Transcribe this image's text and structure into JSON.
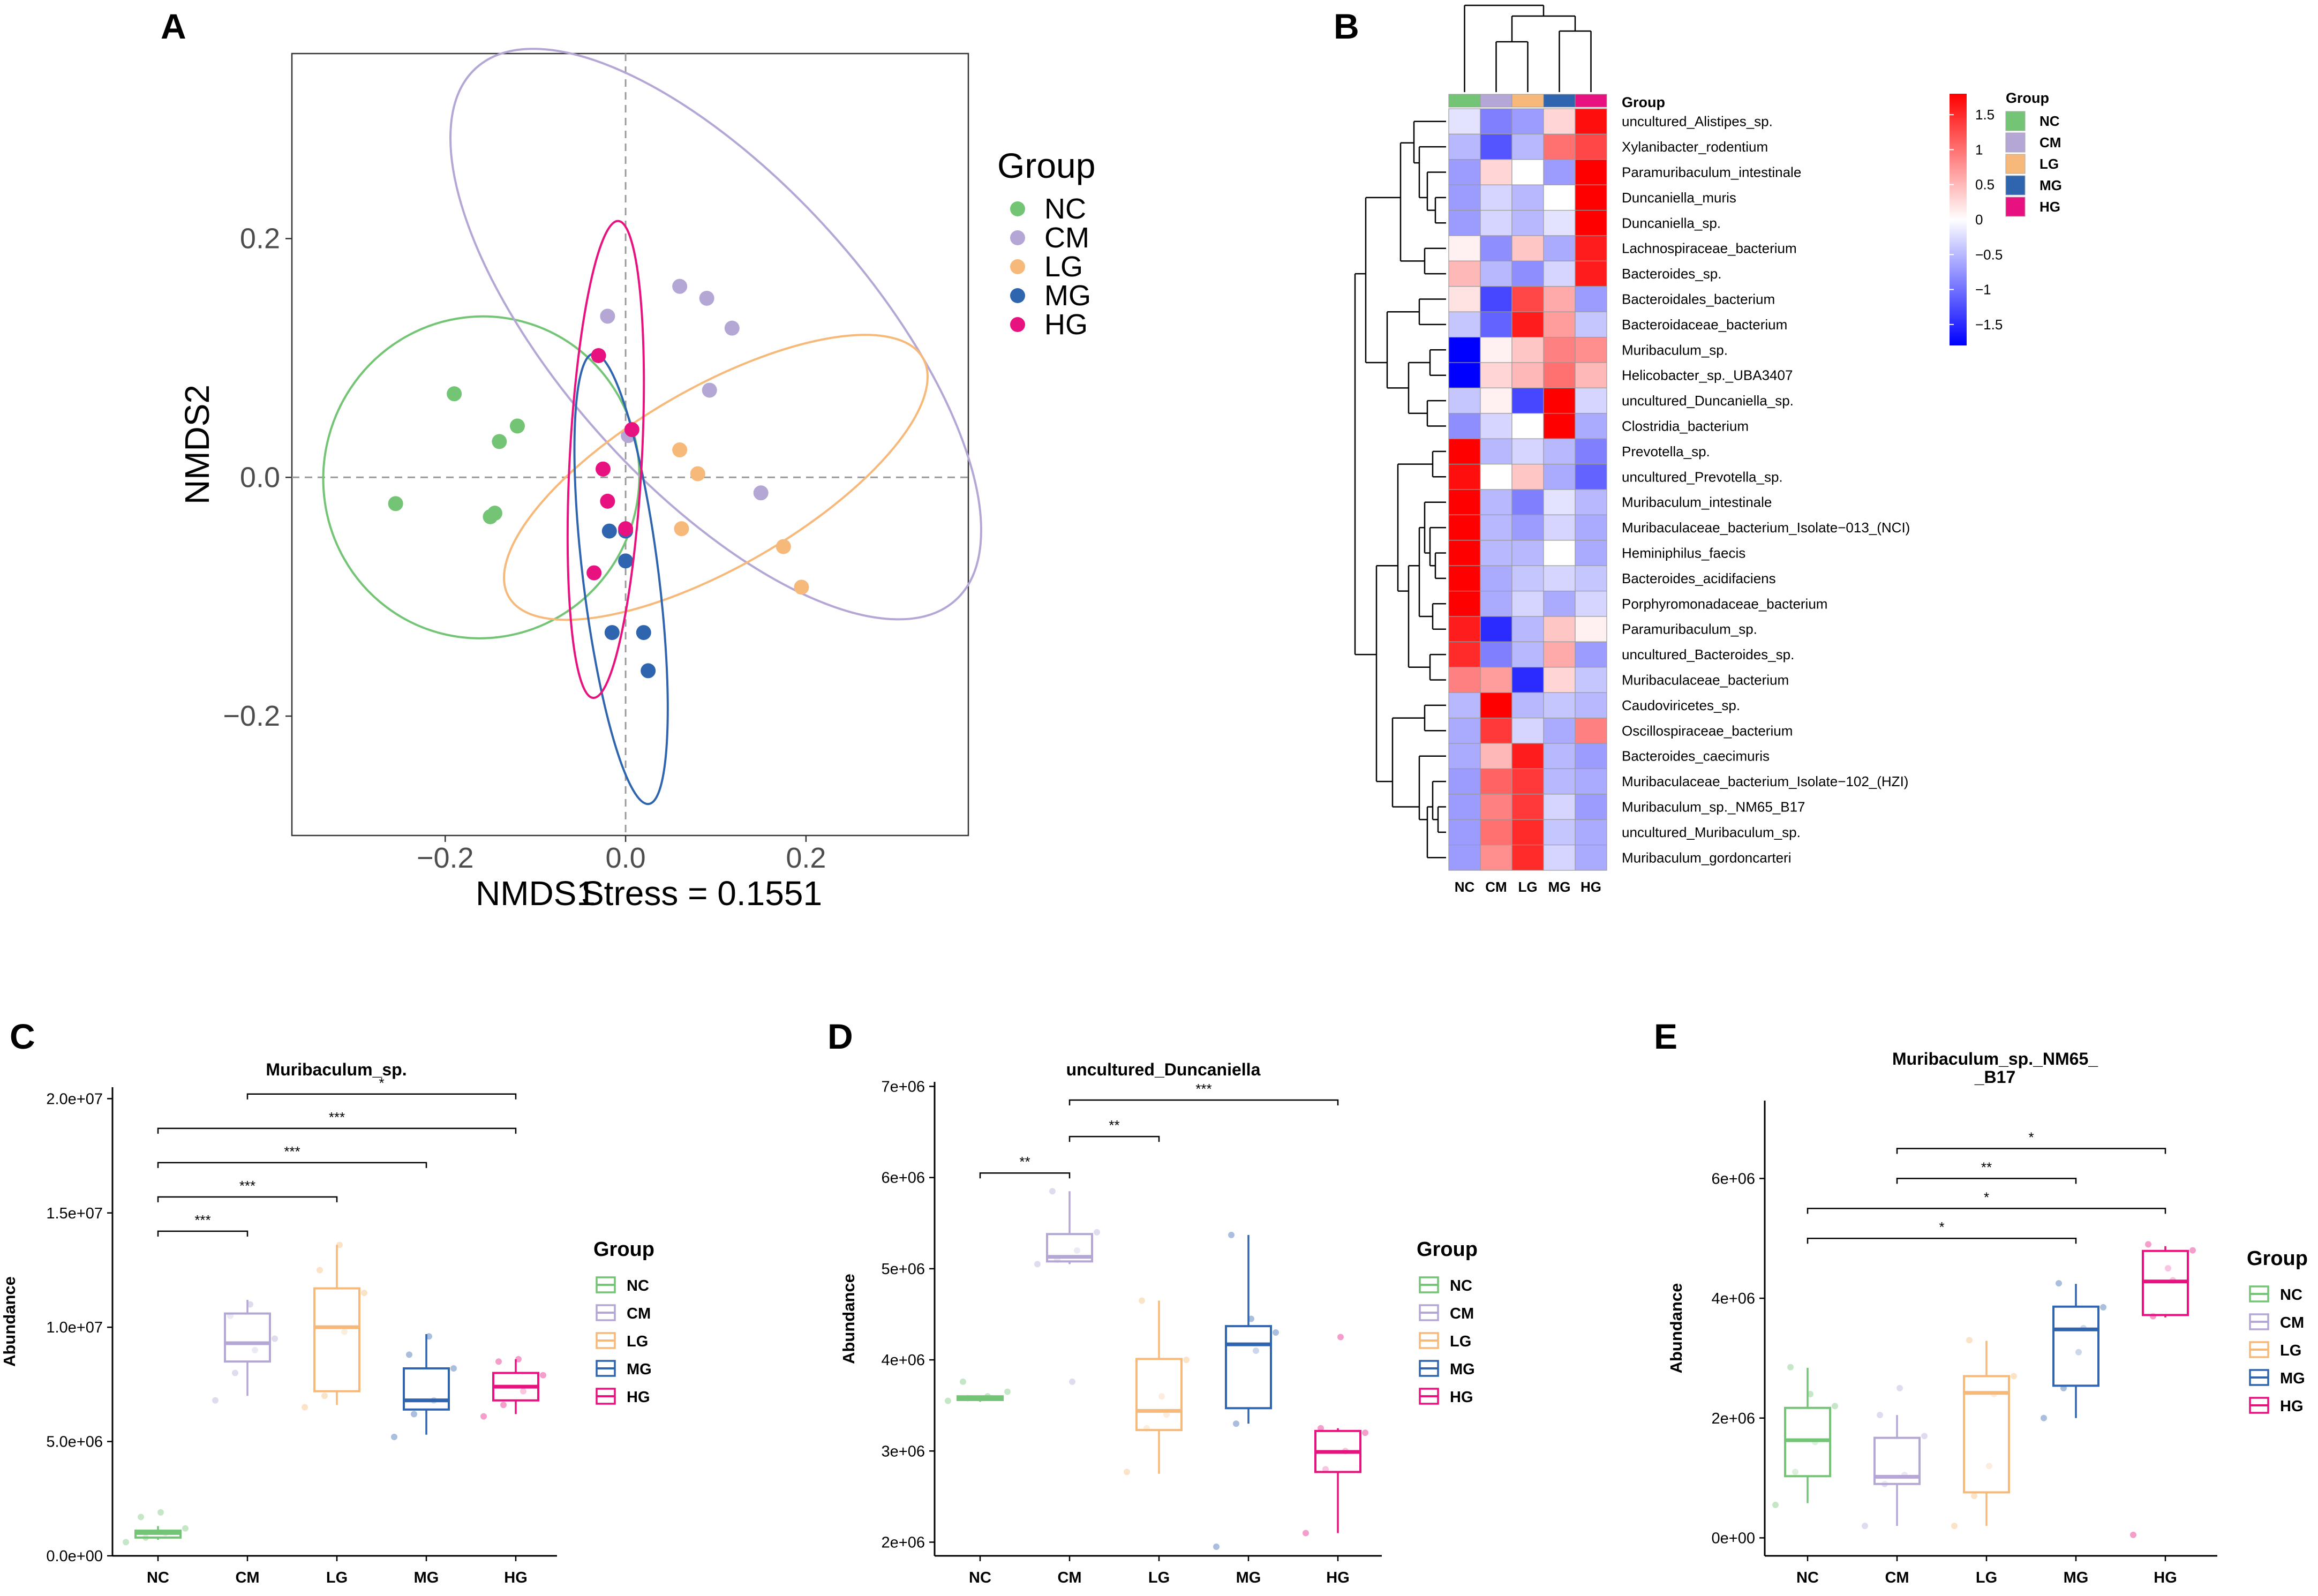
{
  "colors": {
    "NC": "#74c476",
    "CM": "#b4a7d6",
    "LG": "#f6b97a",
    "MG": "#2f64ae",
    "HG": "#e7127f",
    "heat_high": "#ff0000",
    "heat_mid": "#ffffff",
    "heat_low": "#0000ff"
  },
  "groups": [
    "NC",
    "CM",
    "LG",
    "MG",
    "HG"
  ],
  "chart_data": [
    {
      "panel": "A",
      "type": "scatter",
      "xlabel": "NMDS1",
      "stress_label": "Stress = 0.1551",
      "ylabel": "NMDS2",
      "xlim": [
        -0.37,
        0.38
      ],
      "ylim": [
        -0.3,
        0.355
      ],
      "xticks": [
        -0.2,
        0.0,
        0.2
      ],
      "yticks": [
        -0.2,
        0.0,
        0.2
      ],
      "xtick_labels": [
        "−0.2",
        "0.0",
        "0.2"
      ],
      "ytick_labels": [
        "−0.2",
        "0.0",
        "0.2"
      ],
      "legend_title": "Group",
      "legend_position": "right",
      "series": [
        {
          "name": "NC",
          "points": [
            [
              -0.19,
              0.07
            ],
            [
              -0.14,
              0.03
            ],
            [
              -0.12,
              0.043
            ],
            [
              -0.15,
              -0.033
            ],
            [
              -0.145,
              -0.03
            ],
            [
              -0.255,
              -0.022
            ]
          ],
          "ellipse": {
            "center": [
              -0.16,
              0.0
            ],
            "rx": 0.175,
            "ry": 0.135,
            "angle_deg": 15
          }
        },
        {
          "name": "CM",
          "points": [
            [
              -0.02,
              0.135
            ],
            [
              0.06,
              0.16
            ],
            [
              0.09,
              0.15
            ],
            [
              0.118,
              0.125
            ],
            [
              0.093,
              0.073
            ],
            [
              0.15,
              -0.013
            ],
            [
              0.003,
              0.035
            ]
          ],
          "ellipse": {
            "center": [
              0.1,
              0.12
            ],
            "rx": 0.17,
            "ry": 0.3,
            "angle_deg": -42
          }
        },
        {
          "name": "LG",
          "points": [
            [
              0.06,
              0.023
            ],
            [
              0.08,
              0.003
            ],
            [
              0.062,
              -0.043
            ],
            [
              0.175,
              -0.058
            ],
            [
              0.195,
              -0.092
            ]
          ],
          "ellipse": {
            "center": [
              0.1,
              0.0
            ],
            "rx": 0.265,
            "ry": 0.075,
            "angle_deg": -30
          }
        },
        {
          "name": "MG",
          "points": [
            [
              0.0,
              -0.045
            ],
            [
              0.0,
              -0.07
            ],
            [
              -0.015,
              -0.13
            ],
            [
              0.02,
              -0.13
            ],
            [
              0.025,
              -0.162
            ],
            [
              -0.018,
              -0.045
            ]
          ],
          "ellipse": {
            "center": [
              -0.005,
              -0.085
            ],
            "rx": 0.042,
            "ry": 0.19,
            "angle_deg": -7
          }
        },
        {
          "name": "HG",
          "points": [
            [
              -0.03,
              0.102
            ],
            [
              0.007,
              0.04
            ],
            [
              -0.025,
              0.007
            ],
            [
              -0.02,
              -0.02
            ],
            [
              -0.035,
              -0.08
            ],
            [
              0.0,
              -0.043
            ]
          ],
          "ellipse": {
            "center": [
              -0.022,
              0.015
            ],
            "rx": 0.04,
            "ry": 0.2,
            "angle_deg": 3
          }
        }
      ]
    },
    {
      "panel": "B",
      "type": "heatmap",
      "columns": [
        "NC",
        "CM",
        "LG",
        "MG",
        "HG"
      ],
      "column_order_label": "Group",
      "legend_title": "Group",
      "scale_ticks": [
        "1.5",
        "1",
        "0.5",
        "0",
        "−0.5",
        "−1",
        "−1.5"
      ],
      "scale_values": [
        1.5,
        1,
        0.5,
        0,
        -0.5,
        -1,
        -1.5
      ],
      "scale_range": [
        -1.8,
        1.8
      ],
      "rows": [
        {
          "label": "uncultured_Alistipes_sp.",
          "values": [
            -0.2,
            -0.9,
            -0.7,
            0.3,
            1.7
          ]
        },
        {
          "label": "Xylanibacter_rodentium",
          "values": [
            -0.5,
            -1.2,
            -0.5,
            1.0,
            1.3
          ]
        },
        {
          "label": "Paramuribaculum_intestinale",
          "values": [
            -0.7,
            0.3,
            0.0,
            -0.7,
            1.8
          ]
        },
        {
          "label": "Duncaniella_muris",
          "values": [
            -0.7,
            -0.3,
            -0.5,
            0.0,
            1.8
          ]
        },
        {
          "label": "Duncaniella_sp.",
          "values": [
            -0.7,
            -0.3,
            -0.5,
            -0.2,
            1.8
          ]
        },
        {
          "label": "Lachnospiraceae_bacterium",
          "values": [
            0.1,
            -0.8,
            0.4,
            -0.6,
            1.6
          ]
        },
        {
          "label": "Bacteroides_sp.",
          "values": [
            0.5,
            -0.5,
            -0.8,
            -0.3,
            1.6
          ]
        },
        {
          "label": "Bacteroidales_bacterium",
          "values": [
            0.2,
            -1.3,
            1.3,
            0.6,
            -0.7
          ]
        },
        {
          "label": "Bacteroidaceae_bacterium",
          "values": [
            -0.4,
            -1.1,
            1.6,
            0.7,
            -0.4
          ]
        },
        {
          "label": "Muribaculum_sp.",
          "values": [
            -1.9,
            0.1,
            0.4,
            0.9,
            0.8
          ]
        },
        {
          "label": "Helicobacter_sp._UBA3407",
          "values": [
            -1.8,
            0.3,
            0.5,
            1.0,
            0.5
          ]
        },
        {
          "label": "uncultured_Duncaniella_sp.",
          "values": [
            -0.4,
            0.1,
            -1.3,
            1.8,
            -0.3
          ]
        },
        {
          "label": "Clostridia_bacterium",
          "values": [
            -0.8,
            -0.3,
            0.0,
            1.9,
            -0.6
          ]
        },
        {
          "label": "Prevotella_sp.",
          "values": [
            1.8,
            -0.5,
            -0.3,
            -0.5,
            -0.9
          ]
        },
        {
          "label": "uncultured_Prevotella_sp.",
          "values": [
            1.7,
            0.0,
            0.4,
            -0.6,
            -1.1
          ]
        },
        {
          "label": "Muribaculum_intestinale",
          "values": [
            1.8,
            -0.5,
            -0.9,
            -0.2,
            -0.5
          ]
        },
        {
          "label": "Muribaculaceae_bacterium_Isolate−013_(NCI)",
          "values": [
            1.8,
            -0.5,
            -0.7,
            -0.3,
            -0.6
          ]
        },
        {
          "label": "Heminiphilus_faecis",
          "values": [
            1.8,
            -0.5,
            -0.5,
            0.0,
            -0.6
          ]
        },
        {
          "label": "Bacteroides_acidifaciens",
          "values": [
            1.8,
            -0.6,
            -0.4,
            -0.3,
            -0.4
          ]
        },
        {
          "label": "Porphyromonadaceae_bacterium",
          "values": [
            1.8,
            -0.6,
            -0.3,
            -0.6,
            -0.3
          ]
        },
        {
          "label": "Paramuribaculum_sp.",
          "values": [
            1.6,
            -1.5,
            -0.5,
            0.4,
            0.1
          ]
        },
        {
          "label": "uncultured_Bacteroides_sp.",
          "values": [
            1.5,
            -0.9,
            -0.5,
            0.6,
            -0.7
          ]
        },
        {
          "label": "Muribaculaceae_bacterium",
          "values": [
            0.9,
            0.7,
            -1.5,
            0.3,
            -0.4
          ]
        },
        {
          "label": "Caudoviricetes_sp.",
          "values": [
            -0.5,
            1.8,
            -0.5,
            -0.4,
            -0.5
          ]
        },
        {
          "label": "Oscillospiraceae_bacterium",
          "values": [
            -0.6,
            1.4,
            -0.3,
            -0.6,
            0.9
          ]
        },
        {
          "label": "Bacteroides_caecimuris",
          "values": [
            -0.6,
            0.5,
            1.6,
            -0.5,
            -0.7
          ]
        },
        {
          "label": "Muribaculaceae_bacterium_Isolate−102_(HZI)",
          "values": [
            -0.7,
            1.1,
            1.4,
            -0.5,
            -0.6
          ]
        },
        {
          "label": "Muribaculum_sp._NM65_B17",
          "values": [
            -0.7,
            0.9,
            1.4,
            -0.3,
            -0.7
          ]
        },
        {
          "label": "uncultured_Muribaculum_sp.",
          "values": [
            -0.7,
            1.0,
            1.5,
            -0.4,
            -0.6
          ]
        },
        {
          "label": "Muribaculum_gordoncarteri",
          "values": [
            -0.7,
            0.8,
            1.5,
            -0.3,
            -0.6
          ]
        }
      ]
    },
    {
      "panel": "C",
      "type": "box",
      "title": "Muribaculum_sp.",
      "ylabel": "Abundance",
      "ylim": [
        0,
        20500000
      ],
      "yticks": [
        0,
        5000000,
        10000000,
        15000000,
        20000000
      ],
      "ytick_labels": [
        "0.0e+00",
        "5.0e+06",
        "1.0e+07",
        "1.5e+07",
        "2.0e+07"
      ],
      "categories": [
        "NC",
        "CM",
        "LG",
        "MG",
        "HG"
      ],
      "legend_title": "Group",
      "boxes": [
        {
          "group": "NC",
          "min": 700000,
          "q1": 800000,
          "median": 1000000,
          "q3": 1100000,
          "max": 1300000,
          "points": [
            600000,
            800000,
            1000000,
            1200000,
            1700000,
            1900000
          ]
        },
        {
          "group": "CM",
          "min": 7000000,
          "q1": 8500000,
          "median": 9300000,
          "q3": 10600000,
          "max": 11200000,
          "points": [
            6800000,
            8000000,
            9000000,
            9500000,
            10500000,
            11000000
          ]
        },
        {
          "group": "LG",
          "min": 6600000,
          "q1": 7200000,
          "median": 10000000,
          "q3": 11700000,
          "max": 13600000,
          "points": [
            6500000,
            7000000,
            9800000,
            11500000,
            12500000,
            13600000
          ]
        },
        {
          "group": "MG",
          "min": 5300000,
          "q1": 6400000,
          "median": 6800000,
          "q3": 8200000,
          "max": 9700000,
          "points": [
            5200000,
            6200000,
            6800000,
            8200000,
            8800000,
            9600000
          ]
        },
        {
          "group": "HG",
          "min": 6200000,
          "q1": 6800000,
          "median": 7400000,
          "q3": 8000000,
          "max": 8600000,
          "points": [
            6100000,
            6600000,
            7200000,
            7900000,
            8500000,
            8600000
          ]
        }
      ],
      "significance": [
        {
          "from": "NC",
          "to": "CM",
          "label": "***",
          "y": 14200000
        },
        {
          "from": "NC",
          "to": "LG",
          "label": "***",
          "y": 15700000
        },
        {
          "from": "NC",
          "to": "MG",
          "label": "***",
          "y": 17200000
        },
        {
          "from": "NC",
          "to": "HG",
          "label": "***",
          "y": 18700000
        },
        {
          "from": "CM",
          "to": "HG",
          "label": "*",
          "y": 20200000
        }
      ]
    },
    {
      "panel": "D",
      "type": "box",
      "title": "uncultured_Duncaniella",
      "ylabel": "Abundance",
      "ylim": [
        1850000,
        7050000
      ],
      "yticks": [
        2000000,
        3000000,
        4000000,
        5000000,
        6000000,
        7000000
      ],
      "ytick_labels": [
        "2e+06",
        "3e+06",
        "4e+06",
        "5e+06",
        "6e+06",
        "7e+06"
      ],
      "categories": [
        "NC",
        "CM",
        "LG",
        "MG",
        "HG"
      ],
      "legend_title": "Group",
      "boxes": [
        {
          "group": "NC",
          "min": 3540000,
          "q1": 3560000,
          "median": 3580000,
          "q3": 3600000,
          "max": 3610000,
          "points": [
            3550000,
            3580000,
            3600000,
            3650000,
            3760000
          ]
        },
        {
          "group": "CM",
          "min": 5050000,
          "q1": 5080000,
          "median": 5130000,
          "q3": 5380000,
          "max": 5850000,
          "points": [
            5050000,
            5100000,
            5200000,
            5400000,
            5850000,
            3760000
          ]
        },
        {
          "group": "LG",
          "min": 2750000,
          "q1": 3230000,
          "median": 3440000,
          "q3": 4010000,
          "max": 4650000,
          "points": [
            2770000,
            3250000,
            3400000,
            4000000,
            4650000,
            3600000
          ]
        },
        {
          "group": "MG",
          "min": 3300000,
          "q1": 3470000,
          "median": 4170000,
          "q3": 4370000,
          "max": 5370000,
          "points": [
            1950000,
            3300000,
            4100000,
            4300000,
            5370000,
            4450000
          ]
        },
        {
          "group": "HG",
          "min": 2100000,
          "q1": 2770000,
          "median": 2990000,
          "q3": 3220000,
          "max": 3250000,
          "points": [
            2100000,
            2800000,
            3000000,
            3200000,
            3250000,
            4250000
          ]
        }
      ],
      "significance": [
        {
          "from": "NC",
          "to": "CM",
          "label": "**",
          "y": 6050000
        },
        {
          "from": "CM",
          "to": "LG",
          "label": "**",
          "y": 6450000
        },
        {
          "from": "CM",
          "to": "HG",
          "label": "***",
          "y": 6850000
        }
      ]
    },
    {
      "panel": "E",
      "type": "box",
      "title": "Muribaculum_sp._NM65_\n_B17",
      "title_lines": [
        "Muribaculum_sp._NM65_",
        "_B17"
      ],
      "ylabel": "Abundance",
      "ylim": [
        -300000,
        7300000
      ],
      "yticks": [
        0,
        2000000,
        4000000,
        6000000
      ],
      "ytick_labels": [
        "0e+00",
        "2e+06",
        "4e+06",
        "6e+06"
      ],
      "categories": [
        "NC",
        "CM",
        "LG",
        "MG",
        "HG"
      ],
      "legend_title": "Group",
      "boxes": [
        {
          "group": "NC",
          "min": 580000,
          "q1": 1030000,
          "median": 1630000,
          "q3": 2170000,
          "max": 2840000,
          "points": [
            550000,
            1100000,
            1600000,
            2200000,
            2850000,
            2400000
          ]
        },
        {
          "group": "CM",
          "min": 200000,
          "q1": 900000,
          "median": 1020000,
          "q3": 1670000,
          "max": 2050000,
          "points": [
            200000,
            900000,
            1050000,
            1700000,
            2050000,
            2500000
          ]
        },
        {
          "group": "LG",
          "min": 200000,
          "q1": 760000,
          "median": 2420000,
          "q3": 2700000,
          "max": 3290000,
          "points": [
            200000,
            700000,
            2400000,
            2700000,
            3300000,
            1200000
          ]
        },
        {
          "group": "MG",
          "min": 2000000,
          "q1": 2540000,
          "median": 3480000,
          "q3": 3860000,
          "max": 4240000,
          "points": [
            2000000,
            2500000,
            3500000,
            3850000,
            4250000,
            3100000
          ]
        },
        {
          "group": "HG",
          "min": 3680000,
          "q1": 3720000,
          "median": 4280000,
          "q3": 4790000,
          "max": 4870000,
          "points": [
            50000,
            3700000,
            4300000,
            4800000,
            4900000,
            4500000
          ]
        }
      ],
      "significance": [
        {
          "from": "NC",
          "to": "MG",
          "label": "*",
          "y": 5000000
        },
        {
          "from": "NC",
          "to": "HG",
          "label": "*",
          "y": 5500000
        },
        {
          "from": "CM",
          "to": "MG",
          "label": "**",
          "y": 6000000
        },
        {
          "from": "CM",
          "to": "HG",
          "label": "*",
          "y": 6500000
        }
      ]
    }
  ],
  "panel_labels": [
    "A",
    "B",
    "C",
    "D",
    "E"
  ]
}
